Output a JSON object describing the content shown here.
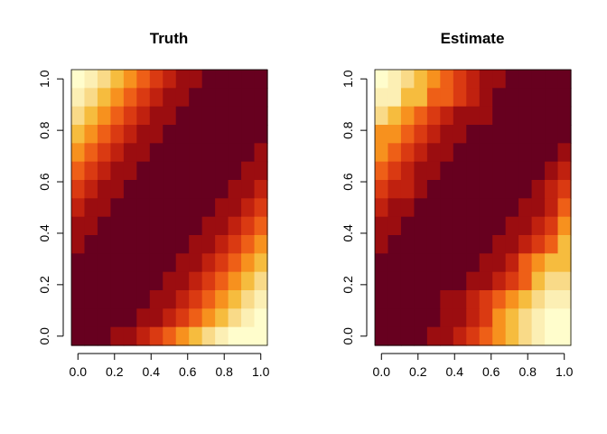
{
  "chart_data": [
    {
      "type": "heatmap",
      "title": "Truth",
      "xlabel": "",
      "ylabel": "",
      "xlim": [
        0,
        1
      ],
      "ylim": [
        0,
        1
      ],
      "grid": false,
      "legend": "none",
      "x_ticks": [
        "0.0",
        "0.2",
        "0.4",
        "0.6",
        "0.8",
        "1.0"
      ],
      "y_ticks": [
        "0.0",
        "0.2",
        "0.4",
        "0.6",
        "0.8",
        "1.0"
      ],
      "palette": [
        "#67001F",
        "#9B0D10",
        "#C0210F",
        "#DA3A12",
        "#EE5F17",
        "#F7911E",
        "#F6BC3E",
        "#F9DA88",
        "#FCEFB4",
        "#FFFDCC"
      ],
      "matrix": [
        [
          9,
          8,
          7,
          6,
          5,
          4,
          3,
          2,
          1,
          1,
          0,
          0,
          0,
          0,
          0
        ],
        [
          8,
          7,
          6,
          5,
          4,
          3,
          2,
          1,
          1,
          0,
          0,
          0,
          0,
          0,
          0
        ],
        [
          7,
          6,
          5,
          4,
          3,
          2,
          1,
          1,
          0,
          0,
          0,
          0,
          0,
          0,
          0
        ],
        [
          6,
          5,
          4,
          3,
          2,
          1,
          1,
          0,
          0,
          0,
          0,
          0,
          0,
          0,
          0
        ],
        [
          5,
          4,
          3,
          2,
          1,
          1,
          0,
          0,
          0,
          0,
          0,
          0,
          0,
          0,
          1
        ],
        [
          4,
          3,
          2,
          1,
          1,
          0,
          0,
          0,
          0,
          0,
          0,
          0,
          0,
          1,
          1
        ],
        [
          3,
          2,
          1,
          1,
          0,
          0,
          0,
          0,
          0,
          0,
          0,
          0,
          1,
          1,
          2
        ],
        [
          2,
          1,
          1,
          0,
          0,
          0,
          0,
          0,
          0,
          0,
          0,
          1,
          1,
          2,
          3
        ],
        [
          1,
          1,
          0,
          0,
          0,
          0,
          0,
          0,
          0,
          0,
          1,
          1,
          2,
          3,
          4
        ],
        [
          1,
          0,
          0,
          0,
          0,
          0,
          0,
          0,
          0,
          1,
          1,
          2,
          3,
          4,
          5
        ],
        [
          0,
          0,
          0,
          0,
          0,
          0,
          0,
          0,
          1,
          1,
          2,
          3,
          4,
          5,
          6
        ],
        [
          0,
          0,
          0,
          0,
          0,
          0,
          0,
          1,
          1,
          2,
          3,
          4,
          5,
          6,
          7
        ],
        [
          0,
          0,
          0,
          0,
          0,
          0,
          1,
          1,
          2,
          3,
          4,
          5,
          6,
          7,
          8
        ],
        [
          0,
          0,
          0,
          0,
          0,
          1,
          1,
          2,
          3,
          4,
          5,
          6,
          7,
          8,
          9
        ],
        [
          0,
          0,
          0,
          1,
          1,
          2,
          3,
          4,
          5,
          6,
          7,
          8,
          9,
          9,
          9
        ]
      ]
    },
    {
      "type": "heatmap",
      "title": "Estimate",
      "xlabel": "",
      "ylabel": "",
      "xlim": [
        0,
        1
      ],
      "ylim": [
        0,
        1
      ],
      "grid": false,
      "legend": "none",
      "x_ticks": [
        "0.0",
        "0.2",
        "0.4",
        "0.6",
        "0.8",
        "1.0"
      ],
      "y_ticks": [
        "0.0",
        "0.2",
        "0.4",
        "0.6",
        "0.8",
        "1.0"
      ],
      "palette": [
        "#67001F",
        "#9B0D10",
        "#C0210F",
        "#DA3A12",
        "#EE5F17",
        "#F7911E",
        "#F6BC3E",
        "#F9DA88",
        "#FCEFB4",
        "#FFFDCC"
      ],
      "matrix": [
        [
          9,
          8,
          7,
          6,
          5,
          4,
          3,
          2,
          1,
          1,
          0,
          0,
          0,
          0,
          0
        ],
        [
          8,
          8,
          6,
          6,
          4,
          4,
          3,
          2,
          1,
          0,
          0,
          0,
          0,
          0,
          0
        ],
        [
          7,
          6,
          5,
          4,
          3,
          2,
          1,
          1,
          1,
          0,
          0,
          0,
          0,
          0,
          0
        ],
        [
          5,
          5,
          4,
          3,
          2,
          1,
          1,
          0,
          0,
          0,
          0,
          0,
          0,
          0,
          0
        ],
        [
          5,
          4,
          3,
          2,
          1,
          1,
          0,
          0,
          0,
          0,
          0,
          0,
          0,
          0,
          1
        ],
        [
          4,
          3,
          2,
          1,
          1,
          0,
          0,
          0,
          0,
          0,
          0,
          0,
          0,
          1,
          2
        ],
        [
          3,
          2,
          2,
          1,
          0,
          0,
          0,
          0,
          0,
          0,
          0,
          0,
          1,
          2,
          3
        ],
        [
          2,
          1,
          1,
          0,
          0,
          0,
          0,
          0,
          0,
          0,
          0,
          1,
          1,
          2,
          4
        ],
        [
          1,
          1,
          0,
          0,
          0,
          0,
          0,
          0,
          0,
          0,
          1,
          1,
          2,
          3,
          5
        ],
        [
          1,
          0,
          0,
          0,
          0,
          0,
          0,
          0,
          0,
          1,
          1,
          2,
          3,
          4,
          6
        ],
        [
          0,
          0,
          0,
          0,
          0,
          0,
          0,
          0,
          1,
          1,
          2,
          4,
          5,
          6,
          6
        ],
        [
          0,
          0,
          0,
          0,
          0,
          0,
          0,
          1,
          1,
          2,
          3,
          4,
          6,
          7,
          7
        ],
        [
          0,
          0,
          0,
          0,
          0,
          1,
          1,
          2,
          3,
          4,
          5,
          6,
          7,
          8,
          8
        ],
        [
          0,
          0,
          0,
          0,
          0,
          1,
          1,
          2,
          3,
          5,
          6,
          7,
          8,
          9,
          9
        ],
        [
          0,
          0,
          0,
          0,
          1,
          1,
          2,
          3,
          4,
          5,
          6,
          7,
          8,
          9,
          9
        ]
      ]
    }
  ]
}
